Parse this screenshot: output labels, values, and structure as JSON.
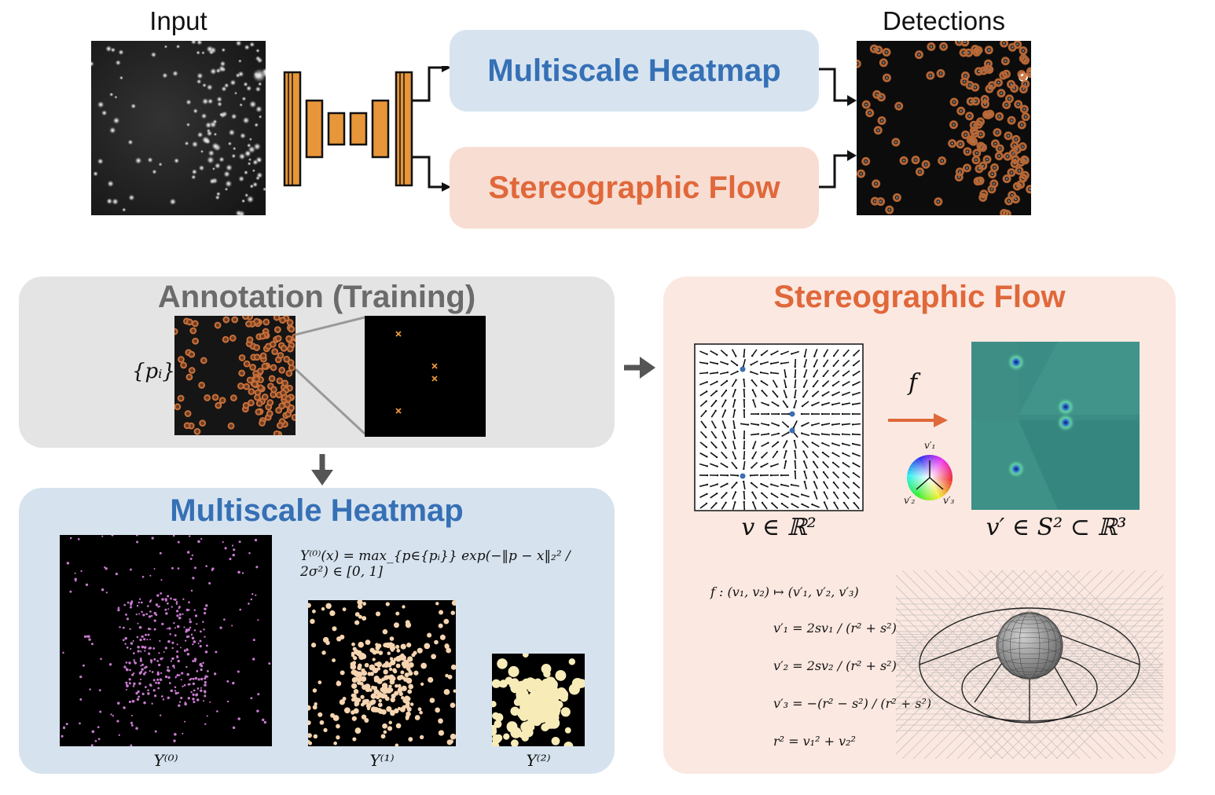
{
  "top": {
    "input_label": "Input",
    "detections_label": "Detections",
    "heatmap_box": "Multiscale Heatmap",
    "flow_box": "Stereographic Flow"
  },
  "annotation": {
    "title": "Annotation (Training)",
    "points_label": "{pᵢ}"
  },
  "heatmap_panel": {
    "title": "Multiscale Heatmap",
    "formula": "Υ⁽⁰⁾(x) = max_{p∈{pᵢ}} exp(−‖p − x‖₂² / 2σ²) ∈ [0, 1]",
    "caption_0": "Υ⁽⁰⁾",
    "caption_1": "Υ⁽¹⁾",
    "caption_2": "Υ⁽²⁾"
  },
  "flow_panel": {
    "title": "Stereographic Flow",
    "f_label": "f",
    "v_label": "v ∈ ℝ²",
    "vprime_label": "v′ ∈ S² ⊂ ℝ³",
    "wheel_labels": [
      "v′₁",
      "v′₂",
      "v′₃"
    ],
    "eq_map": "f : (v₁, v₂) ↦ (v′₁, v′₂, v′₃)",
    "eq_v1": "v′₁ = 2sv₁ / (r² + s²)",
    "eq_v2": "v′₂ = 2sv₂ / (r² + s²)",
    "eq_v3": "v′₃ = −(r² − s²) / (r² + s²)",
    "eq_r": "r² = v₁² + v₂²"
  },
  "colors": {
    "heatmap_blue": "#3670b5",
    "flow_orange": "#e0683a",
    "heatmap_box_bg": "#d7e4f0",
    "flow_box_bg": "#f8ddd3",
    "annotation_bg": "#e4e4e4",
    "annotation_title": "#6b6b6b",
    "flow_panel_bg": "#fbe8e1",
    "heatmap_panel_bg": "#d6e3ef",
    "unet_orange": "#e8963a",
    "detection_ring": "#c8703a"
  }
}
